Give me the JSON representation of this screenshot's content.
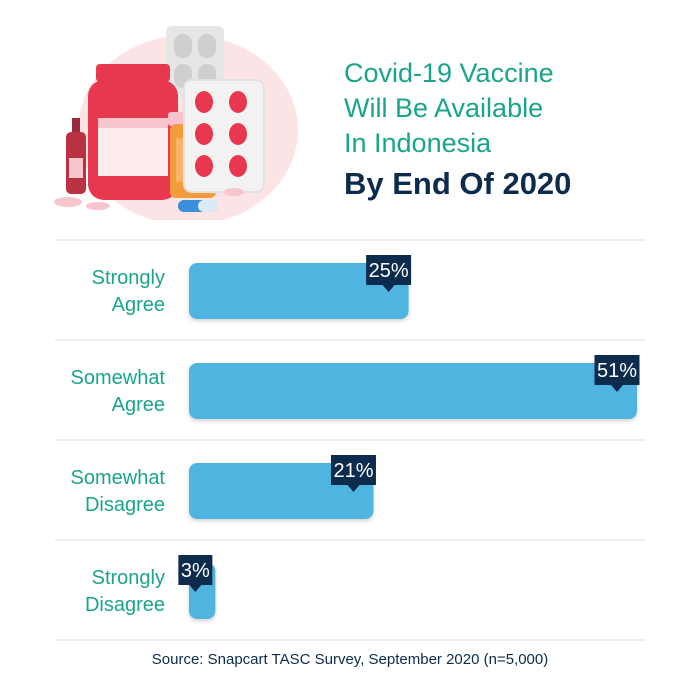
{
  "title": {
    "lines": [
      "Covid-19 Vaccine",
      "Will Be Available",
      "In Indonesia"
    ],
    "emphasis": "By End Of 2020"
  },
  "chart_data": {
    "type": "bar",
    "orientation": "horizontal",
    "categories": [
      [
        "Strongly",
        "Agree"
      ],
      [
        "Somewhat",
        "Agree"
      ],
      [
        "Somewhat",
        "Disagree"
      ],
      [
        "Strongly",
        "Disagree"
      ]
    ],
    "values": [
      25,
      51,
      21,
      3
    ],
    "data_labels": [
      "25%",
      "51%",
      "21%",
      "3%"
    ],
    "unit": "%",
    "xlim": [
      0,
      51
    ],
    "grid": false,
    "legend": "none",
    "colors": {
      "bar": "#4fb5e0",
      "label_box": "#0d2b4d",
      "label_text": "#ffffff",
      "category_text": "#1aa58a",
      "separator": "#dddddd"
    }
  },
  "source": "Source: Snapcart TASC Survey, September 2020 (n=5,000)",
  "illustration": {
    "icons": [
      "medicine-bottle-icon",
      "blister-pack-icon",
      "pill-bottle-icon",
      "vial-icon",
      "capsule-icon",
      "tablet-icon"
    ],
    "colors": {
      "red": "#e8384f",
      "pink": "#f7c6cc",
      "orange": "#f39c3c",
      "grey": "#d9d9d9",
      "blue": "#3b8ed8"
    }
  }
}
